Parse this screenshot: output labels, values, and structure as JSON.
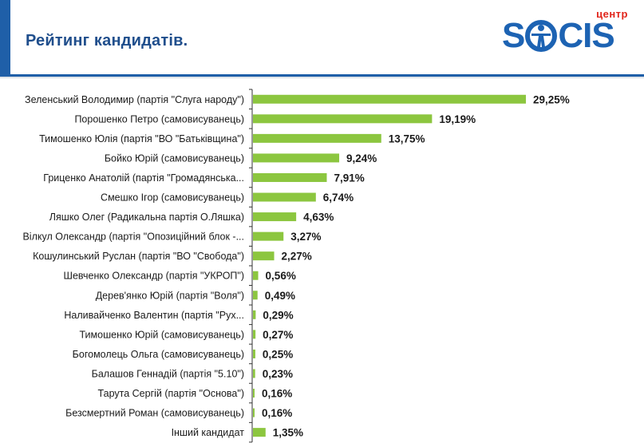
{
  "header": {
    "title": "Рейтинг кандидатів.",
    "logo_small": "центр",
    "logo_brand_left": "S",
    "logo_brand_right": "CIS"
  },
  "colors": {
    "bar": "#8cc63f",
    "title": "#1f4e8c",
    "brand": "#1d63b3",
    "brand_accent": "#e1251b",
    "axis": "#333333"
  },
  "chart_data": {
    "type": "bar",
    "orientation": "horizontal",
    "title": "Рейтинг кандидатів.",
    "xlabel": "",
    "ylabel": "",
    "xlim": [
      0,
      30
    ],
    "value_suffix": "%",
    "categories": [
      "Зеленський Володимир (партія \"Слуга народу\")",
      "Порошенко Петро (самовисуванець)",
      "Тимошенко Юлія (партія \"ВО \"Батьківщина\")",
      "Бойко Юрій (самовисуванець)",
      "Гриценко Анатолій (партія \"Громадянська...",
      "Смешко Ігор (самовисуванець)",
      "Ляшко Олег (Радикальна партія О.Ляшка)",
      "Вілкул Олександр (партія \"Опозиційний блок -...",
      "Кошулинський Руслан (партія \"ВО \"Свобода\")",
      "Шевченко Олександр (партія \"УКРОП\")",
      "Дерев'янко Юрій (партія \"Воля\")",
      "Наливайченко Валентин (партія \"Рух...",
      "Тимошенко Юрій (самовисуванець)",
      "Богомолець Ольга (самовисуванець)",
      "Балашов Геннадій (партія \"5.10\")",
      "Тарута Сергій (партія \"Основа\")",
      "Безсмертний Роман (самовисуванець)",
      "Інший кандидат"
    ],
    "values": [
      29.25,
      19.19,
      13.75,
      9.24,
      7.91,
      6.74,
      4.63,
      3.27,
      2.27,
      0.56,
      0.49,
      0.29,
      0.27,
      0.25,
      0.23,
      0.16,
      0.16,
      1.35
    ],
    "value_labels": [
      "29,25%",
      "19,19%",
      "13,75%",
      "9,24%",
      "7,91%",
      "6,74%",
      "4,63%",
      "3,27%",
      "2,27%",
      "0,56%",
      "0,49%",
      "0,29%",
      "0,27%",
      "0,25%",
      "0,23%",
      "0,16%",
      "0,16%",
      "1,35%"
    ]
  }
}
